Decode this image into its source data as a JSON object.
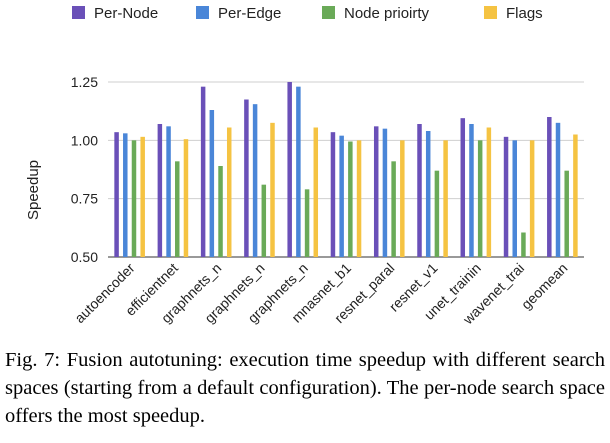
{
  "chart_data": {
    "type": "bar",
    "categories": [
      "autoencoder",
      "efficientnet",
      "graphnets_n",
      "graphnets_n",
      "graphnets_n",
      "mnasnet_b1",
      "resnet_paral",
      "resnet_v1",
      "unet_trainin",
      "wavenet_trai",
      "geomean"
    ],
    "series": [
      {
        "name": "Per-Node",
        "color": "#6a50b8",
        "values": [
          1.035,
          1.07,
          1.23,
          1.175,
          1.25,
          1.035,
          1.06,
          1.07,
          1.095,
          1.015,
          1.1
        ]
      },
      {
        "name": "Per-Edge",
        "color": "#4a86d8",
        "values": [
          1.03,
          1.06,
          1.13,
          1.155,
          1.23,
          1.02,
          1.05,
          1.04,
          1.07,
          1.0,
          1.075
        ]
      },
      {
        "name": "Node prioirty",
        "color": "#6aaa58",
        "values": [
          1.0,
          0.91,
          0.89,
          0.81,
          0.79,
          0.995,
          0.91,
          0.87,
          1.0,
          0.605,
          0.87
        ]
      },
      {
        "name": "Flags",
        "color": "#f5c342",
        "values": [
          1.015,
          1.005,
          1.055,
          1.075,
          1.055,
          1.0,
          1.0,
          1.0,
          1.055,
          1.0,
          1.025
        ]
      }
    ],
    "ylabel": "Speedup",
    "ylim": [
      0.5,
      1.25
    ],
    "yticks": [
      "0.50",
      "0.75",
      "1.00",
      "1.25"
    ],
    "grid": true,
    "legend_position": "top"
  },
  "caption": "Fig. 7: Fusion autotuning: execution time speedup with different search spaces (starting from a default configuration). The per-node search space offers the most speedup."
}
